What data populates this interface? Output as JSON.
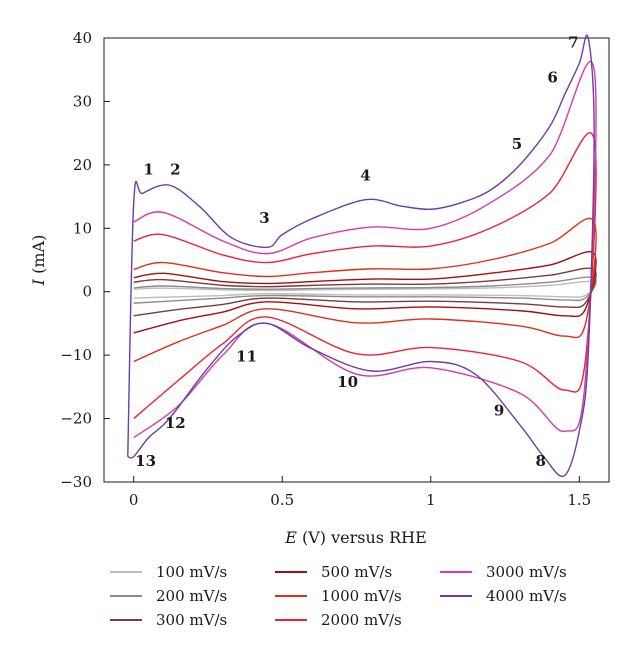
{
  "chart_data": {
    "type": "line",
    "xlabel": {
      "italic": "E",
      "rest": " (V) versus RHE"
    },
    "ylabel": {
      "italic": "I",
      "rest": " (mA)"
    },
    "xlim": [
      -0.1,
      1.6
    ],
    "ylim": [
      -30,
      40
    ],
    "x_ticks": [
      {
        "value": 0,
        "label": "0"
      },
      {
        "value": 0.5,
        "label": "0.5"
      },
      {
        "value": 1,
        "label": "1"
      },
      {
        "value": 1.5,
        "label": "1.5"
      }
    ],
    "y_ticks": [
      {
        "value": -30,
        "label": "−30"
      },
      {
        "value": -20,
        "label": "−20"
      },
      {
        "value": -10,
        "label": "−10"
      },
      {
        "value": 0,
        "label": "0"
      },
      {
        "value": 10,
        "label": "10"
      },
      {
        "value": 20,
        "label": "20"
      },
      {
        "value": 30,
        "label": "30"
      },
      {
        "value": 40,
        "label": "40"
      }
    ],
    "legend_placement": "bottom",
    "series": [
      {
        "name": "100 mV/s",
        "color": "#bdbdbd",
        "scale": 0.045,
        "anodic": [
          [
            0.0,
            0.4
          ],
          [
            0.1,
            0.55
          ],
          [
            0.3,
            0.3
          ],
          [
            0.45,
            0.2
          ],
          [
            0.6,
            0.3
          ],
          [
            0.8,
            0.4
          ],
          [
            1.0,
            0.45
          ],
          [
            1.2,
            0.6
          ],
          [
            1.4,
            1.0
          ],
          [
            1.55,
            1.6
          ]
        ],
        "cathodic": [
          [
            1.55,
            1.6
          ],
          [
            1.52,
            -0.6
          ],
          [
            1.45,
            -0.8
          ],
          [
            1.3,
            -0.6
          ],
          [
            1.0,
            -0.5
          ],
          [
            0.75,
            -0.5
          ],
          [
            0.45,
            -0.3
          ],
          [
            0.3,
            -0.6
          ],
          [
            0.15,
            -0.8
          ],
          [
            0.0,
            -1.0
          ]
        ]
      },
      {
        "name": "200 mV/s",
        "color": "#8c8c8c",
        "scale": 0.09,
        "anodic": [
          [
            0.0,
            0.6
          ],
          [
            0.1,
            0.9
          ],
          [
            0.3,
            0.5
          ],
          [
            0.45,
            0.4
          ],
          [
            0.6,
            0.5
          ],
          [
            0.8,
            0.6
          ],
          [
            1.0,
            0.65
          ],
          [
            1.2,
            0.9
          ],
          [
            1.4,
            1.5
          ],
          [
            1.55,
            2.2
          ]
        ],
        "cathodic": [
          [
            1.55,
            2.2
          ],
          [
            1.52,
            -1.0
          ],
          [
            1.45,
            -1.3
          ],
          [
            1.3,
            -1.0
          ],
          [
            1.0,
            -0.8
          ],
          [
            0.75,
            -0.8
          ],
          [
            0.45,
            -0.6
          ],
          [
            0.3,
            -1.0
          ],
          [
            0.15,
            -1.4
          ],
          [
            0.0,
            -1.8
          ]
        ]
      },
      {
        "name": "300 mV/s",
        "color": "#7a3b3b",
        "scale": 0.14,
        "anodic": [
          [
            0.0,
            1.5
          ],
          [
            0.1,
            1.9
          ],
          [
            0.3,
            1.0
          ],
          [
            0.45,
            0.8
          ],
          [
            0.6,
            1.0
          ],
          [
            0.8,
            1.2
          ],
          [
            1.0,
            1.2
          ],
          [
            1.2,
            1.7
          ],
          [
            1.4,
            2.6
          ],
          [
            1.55,
            3.5
          ]
        ],
        "cathodic": [
          [
            1.55,
            3.5
          ],
          [
            1.52,
            -1.8
          ],
          [
            1.45,
            -2.4
          ],
          [
            1.3,
            -1.9
          ],
          [
            1.0,
            -1.5
          ],
          [
            0.75,
            -1.6
          ],
          [
            0.45,
            -1.0
          ],
          [
            0.3,
            -2.0
          ],
          [
            0.15,
            -2.8
          ],
          [
            0.0,
            -3.8
          ]
        ]
      },
      {
        "name": "500 mV/s",
        "color": "#a01010",
        "scale": 0.2,
        "anodic": [
          [
            0.0,
            2.2
          ],
          [
            0.1,
            2.9
          ],
          [
            0.3,
            1.6
          ],
          [
            0.45,
            1.3
          ],
          [
            0.6,
            1.6
          ],
          [
            0.8,
            2.0
          ],
          [
            1.0,
            2.0
          ],
          [
            1.2,
            2.9
          ],
          [
            1.4,
            4.2
          ],
          [
            1.55,
            6.0
          ]
        ],
        "cathodic": [
          [
            1.55,
            6.0
          ],
          [
            1.52,
            -2.8
          ],
          [
            1.45,
            -3.8
          ],
          [
            1.3,
            -3.0
          ],
          [
            1.0,
            -2.4
          ],
          [
            0.75,
            -2.7
          ],
          [
            0.45,
            -1.6
          ],
          [
            0.3,
            -3.2
          ],
          [
            0.15,
            -4.6
          ],
          [
            0.0,
            -6.5
          ]
        ]
      },
      {
        "name": "1000 mV/s",
        "color": "#e0301a",
        "scale": 0.3,
        "anodic": [
          [
            0.0,
            3.5
          ],
          [
            0.1,
            4.6
          ],
          [
            0.3,
            3.0
          ],
          [
            0.45,
            2.4
          ],
          [
            0.6,
            3.0
          ],
          [
            0.8,
            3.6
          ],
          [
            1.0,
            3.6
          ],
          [
            1.2,
            5.0
          ],
          [
            1.4,
            7.6
          ],
          [
            1.55,
            11.0
          ]
        ],
        "cathodic": [
          [
            1.55,
            11.0
          ],
          [
            1.52,
            -5.2
          ],
          [
            1.45,
            -7.0
          ],
          [
            1.3,
            -5.4
          ],
          [
            1.0,
            -4.3
          ],
          [
            0.75,
            -4.9
          ],
          [
            0.45,
            -2.7
          ],
          [
            0.3,
            -5.3
          ],
          [
            0.15,
            -7.9
          ],
          [
            0.0,
            -11.0
          ]
        ]
      },
      {
        "name": "2000 mV/s",
        "color": "#ee2233",
        "scale": 0.55,
        "anodic": [
          [
            0.0,
            8.0
          ],
          [
            0.1,
            9.0
          ],
          [
            0.3,
            5.8
          ],
          [
            0.45,
            4.6
          ],
          [
            0.6,
            6.0
          ],
          [
            0.8,
            7.2
          ],
          [
            1.0,
            7.2
          ],
          [
            1.2,
            10.0
          ],
          [
            1.4,
            15.5
          ],
          [
            1.55,
            24.0
          ]
        ],
        "cathodic": [
          [
            1.55,
            24.0
          ],
          [
            1.52,
            -11.0
          ],
          [
            1.45,
            -15.5
          ],
          [
            1.3,
            -11.0
          ],
          [
            1.0,
            -8.8
          ],
          [
            0.75,
            -9.8
          ],
          [
            0.45,
            -4.0
          ],
          [
            0.3,
            -8.2
          ],
          [
            0.15,
            -14.0
          ],
          [
            0.0,
            -20.0
          ]
        ]
      },
      {
        "name": "3000 mV/s",
        "color": "#d83aa6",
        "scale": 0.75,
        "anodic": [
          [
            0.0,
            11.0
          ],
          [
            0.1,
            12.5
          ],
          [
            0.3,
            8.0
          ],
          [
            0.45,
            6.0
          ],
          [
            0.6,
            8.5
          ],
          [
            0.8,
            10.2
          ],
          [
            1.0,
            10.0
          ],
          [
            1.2,
            14.0
          ],
          [
            1.4,
            21.5
          ],
          [
            1.55,
            35.0
          ]
        ],
        "cathodic": [
          [
            1.55,
            35.0
          ],
          [
            1.52,
            -14.0
          ],
          [
            1.45,
            -22.0
          ],
          [
            1.3,
            -16.0
          ],
          [
            1.0,
            -12.0
          ],
          [
            0.75,
            -13.0
          ],
          [
            0.45,
            -5.0
          ],
          [
            0.3,
            -10.0
          ],
          [
            0.15,
            -18.0
          ],
          [
            0.0,
            -23.0
          ]
        ]
      },
      {
        "name": "4000 mV/s",
        "color": "#6a3ea8",
        "scale": 1.0,
        "anodic": [
          [
            -0.02,
            -26.0
          ],
          [
            0.0,
            14.0
          ],
          [
            0.03,
            15.5
          ],
          [
            0.12,
            16.8
          ],
          [
            0.22,
            13.5
          ],
          [
            0.33,
            8.5
          ],
          [
            0.45,
            7.0
          ],
          [
            0.5,
            9.0
          ],
          [
            0.6,
            11.5
          ],
          [
            0.78,
            14.5
          ],
          [
            0.9,
            13.5
          ],
          [
            1.0,
            13.0
          ],
          [
            1.1,
            14.0
          ],
          [
            1.2,
            16.0
          ],
          [
            1.3,
            20.0
          ],
          [
            1.4,
            26.0
          ],
          [
            1.45,
            31.0
          ],
          [
            1.5,
            36.0
          ],
          [
            1.53,
            40.0
          ]
        ],
        "cathodic": [
          [
            1.53,
            40.0
          ],
          [
            1.55,
            25.0
          ],
          [
            1.53,
            -10.0
          ],
          [
            1.5,
            -22.0
          ],
          [
            1.45,
            -29.0
          ],
          [
            1.38,
            -26.0
          ],
          [
            1.3,
            -21.0
          ],
          [
            1.15,
            -13.0
          ],
          [
            1.0,
            -11.0
          ],
          [
            0.8,
            -12.5
          ],
          [
            0.6,
            -9.0
          ],
          [
            0.45,
            -5.0
          ],
          [
            0.35,
            -7.0
          ],
          [
            0.25,
            -12.0
          ],
          [
            0.12,
            -20.0
          ],
          [
            0.05,
            -23.0
          ],
          [
            0.0,
            -26.0
          ],
          [
            -0.02,
            -26.0
          ]
        ]
      }
    ],
    "annotations": [
      {
        "label": "1",
        "x": 0.05,
        "y": 18.5
      },
      {
        "label": "2",
        "x": 0.14,
        "y": 18.5
      },
      {
        "label": "3",
        "x": 0.44,
        "y": 10.8
      },
      {
        "label": "4",
        "x": 0.78,
        "y": 17.5
      },
      {
        "label": "5",
        "x": 1.29,
        "y": 22.5
      },
      {
        "label": "6",
        "x": 1.41,
        "y": 33.0
      },
      {
        "label": "7",
        "x": 1.48,
        "y": 38.5
      },
      {
        "label": "8",
        "x": 1.37,
        "y": -27.5
      },
      {
        "label": "9",
        "x": 1.23,
        "y": -19.5
      },
      {
        "label": "10",
        "x": 0.72,
        "y": -15.0
      },
      {
        "label": "11",
        "x": 0.38,
        "y": -11.0
      },
      {
        "label": "12",
        "x": 0.14,
        "y": -21.5
      },
      {
        "label": "13",
        "x": 0.04,
        "y": -27.5
      }
    ]
  }
}
